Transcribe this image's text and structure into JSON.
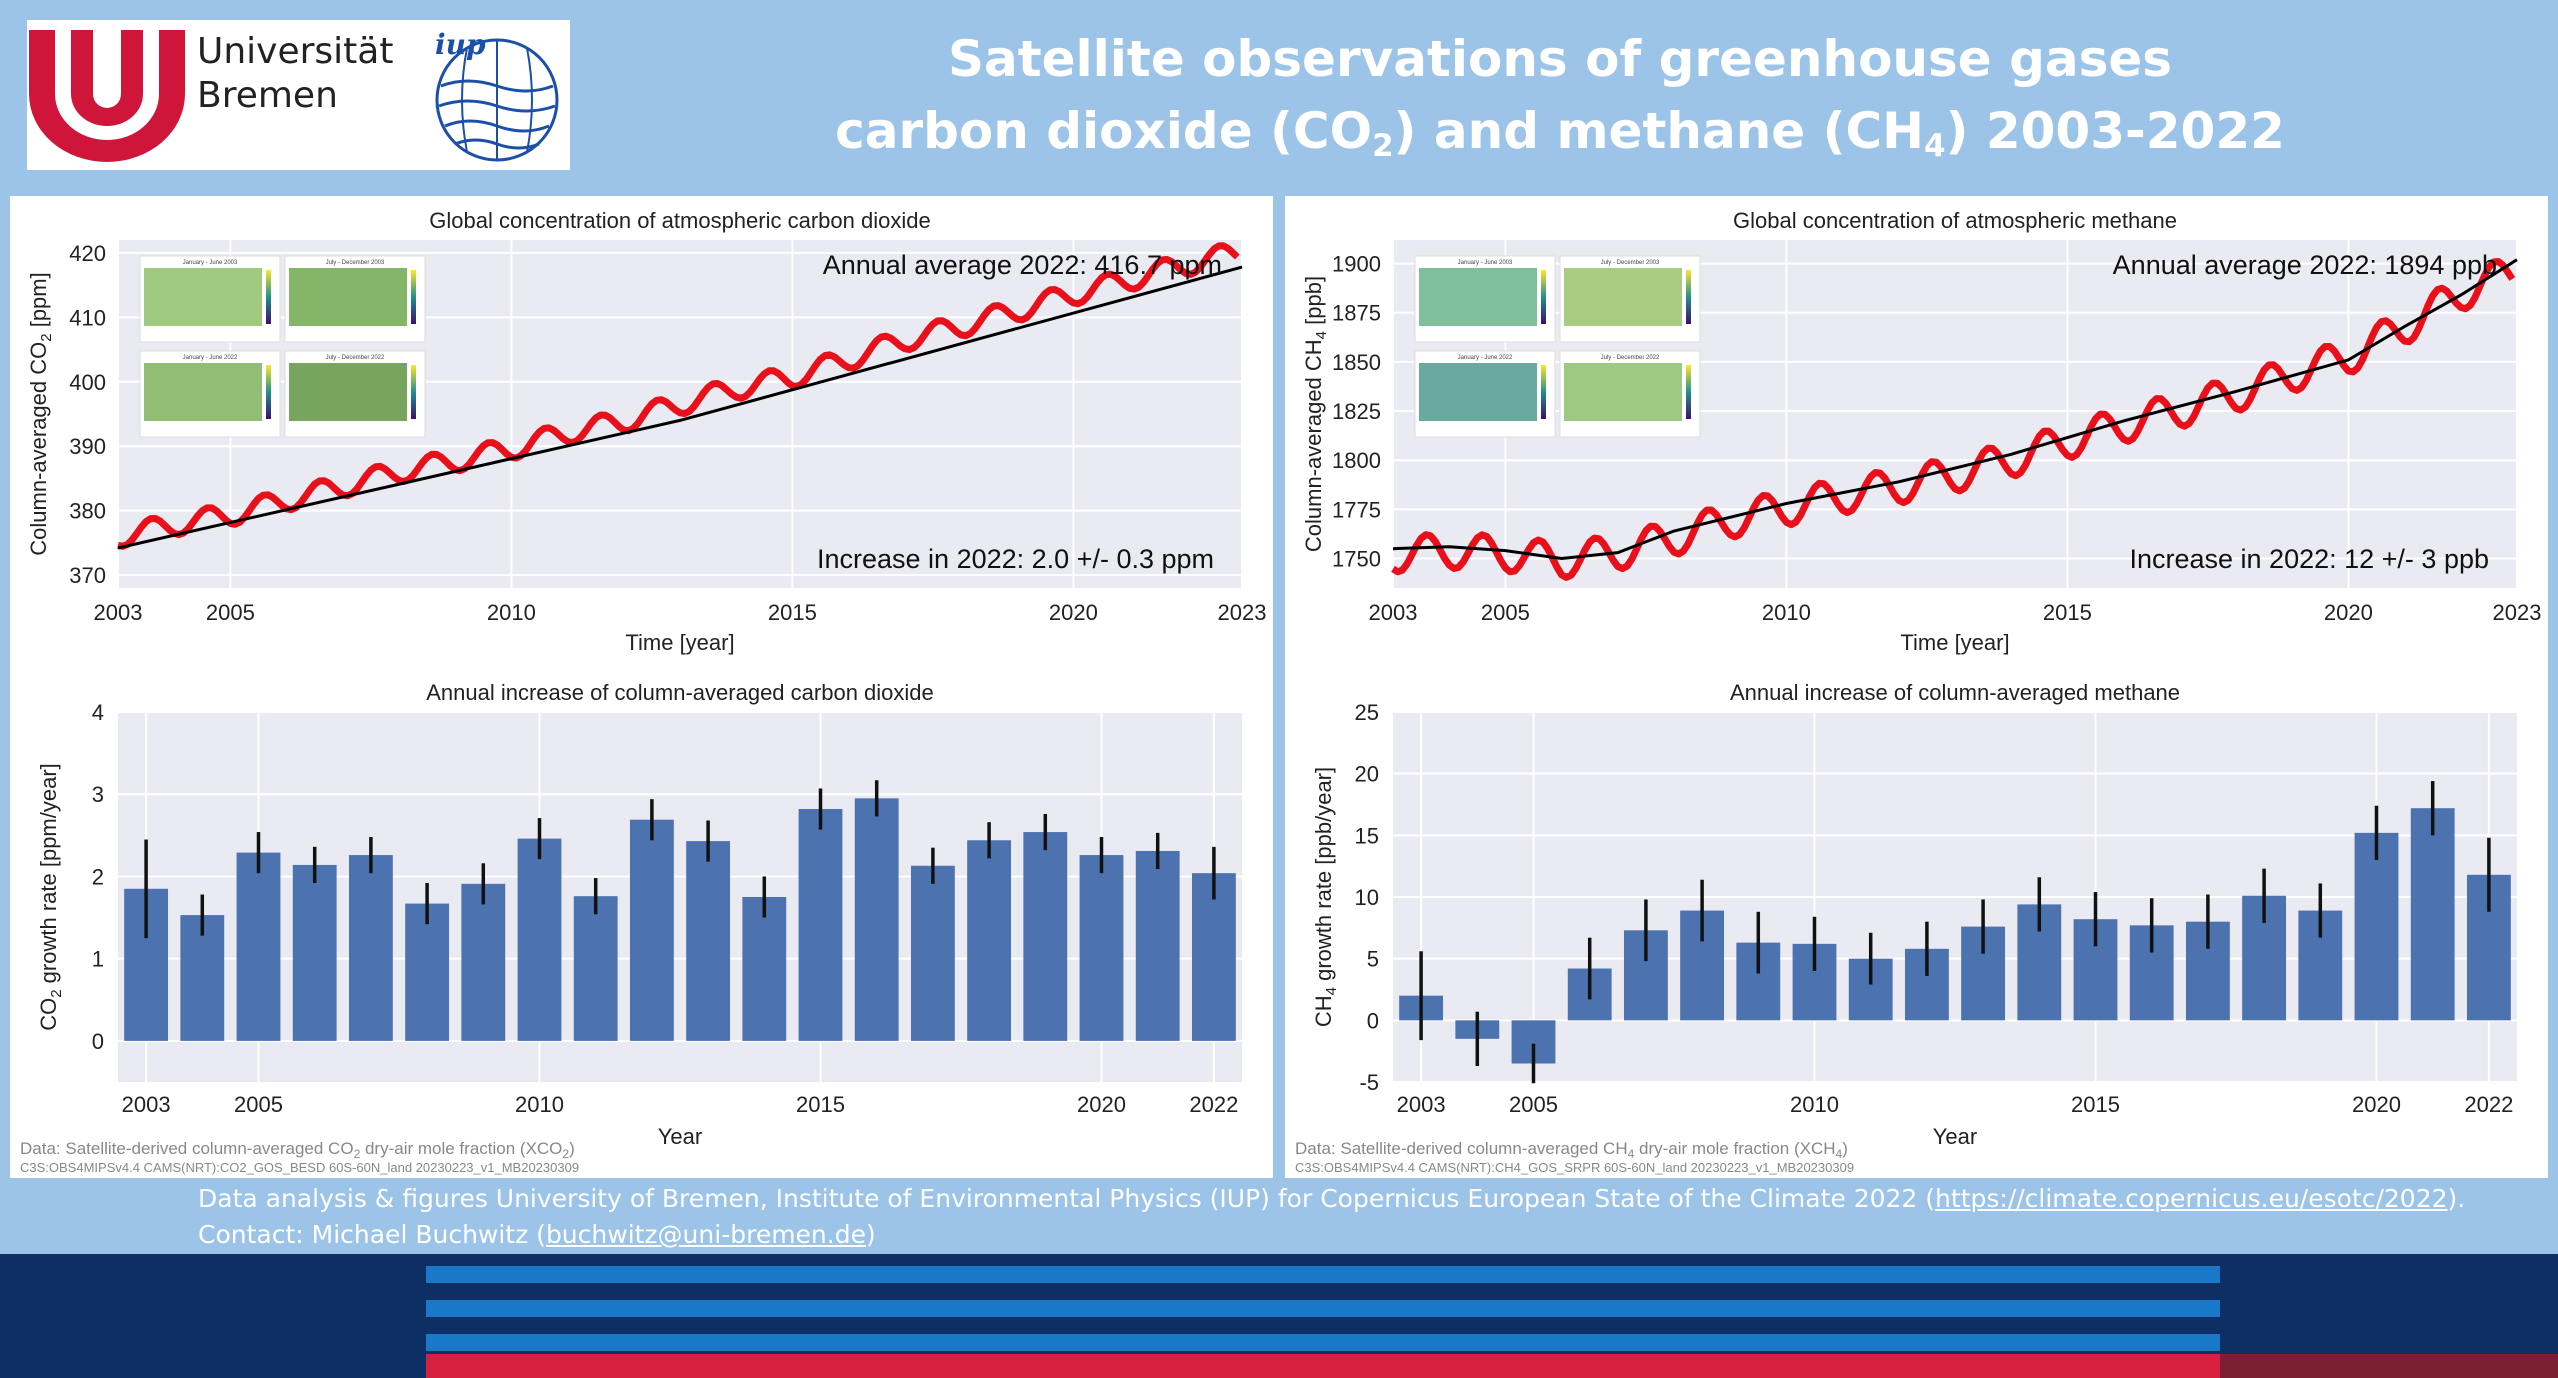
{
  "header": {
    "university_name": "Universität",
    "university_city": "Bremen",
    "institute_logo": "iup",
    "title_line1": "Satellite observations of greenhouse gases",
    "title_line2_a": "carbon dioxide (CO",
    "title_line2_sub1": "2",
    "title_line2_b": ") and methane (CH",
    "title_line2_sub2": "4",
    "title_line2_c": ") 2003-2022"
  },
  "colors": {
    "bar": "#4c72b0",
    "line_red": "#e8101a",
    "trend": "#000000",
    "plot_bg": "#eaeaf2",
    "page_bg": "#9cc3e8",
    "navy": "#0e2f63"
  },
  "panels": {
    "co2": {
      "source_prefix": "Data: Satellite-derived column-averaged CO",
      "source_sub": "2",
      "source_suffix": " dry-air mole fraction (XCO",
      "source_sub2": "2",
      "source_end": ")",
      "source_id": "C3S:OBS4MIPSv4.4 CAMS(NRT):CO2_GOS_BESD 60S-60N_land 20230223_v1_MB20230309",
      "map_titles": [
        "January - June 2003",
        "July - December 2003",
        "January - June 2022",
        "July - December 2022"
      ]
    },
    "ch4": {
      "source_prefix": "Data: Satellite-derived column-averaged CH",
      "source_sub": "4",
      "source_suffix": " dry-air mole fraction (XCH",
      "source_sub2": "4",
      "source_end": ")",
      "source_id": "C3S:OBS4MIPSv4.4 CAMS(NRT):CH4_GOS_SRPR 60S-60N_land 20230223_v1_MB20230309",
      "map_titles": [
        "January - June 2003",
        "July - December 2003",
        "January - June 2022",
        "July - December 2022"
      ]
    }
  },
  "chart_data": [
    {
      "type": "line",
      "title": "Global concentration of atmospheric carbon dioxide",
      "xlabel": "Time [year]",
      "ylabel": "Column-averaged CO2 [ppm]",
      "xlim": [
        2003,
        2023
      ],
      "ylim": [
        368,
        422
      ],
      "xticks": [
        2003,
        2005,
        2010,
        2015,
        2020,
        2023
      ],
      "yticks": [
        370,
        380,
        390,
        400,
        410,
        420
      ],
      "annotations": [
        "Annual average 2022: 416.7 ppm",
        "Increase in 2022: 2.0 +/- 0.3 ppm"
      ],
      "series": [
        {
          "style": "red-seasonal",
          "start": 376.0,
          "annual_growth": [
            1.85,
            1.53,
            2.29,
            2.14,
            2.26,
            1.67,
            1.91,
            2.46,
            1.76,
            2.69,
            2.43,
            1.75,
            2.82,
            2.95,
            2.13,
            2.44,
            2.54,
            2.26,
            2.31,
            2.04
          ],
          "seasonal_amplitude": 1.7
        },
        {
          "style": "trend",
          "points": [
            [
              2003,
              374.2
            ],
            [
              2013,
              394.0
            ],
            [
              2023,
              417.8
            ]
          ]
        }
      ]
    },
    {
      "type": "bar",
      "title": "Annual increase of column-averaged carbon dioxide",
      "xlabel": "Year",
      "ylabel": "CO2 growth rate [ppm/year]",
      "ylim": [
        -0.5,
        4
      ],
      "yticks": [
        0,
        1,
        2,
        3,
        4
      ],
      "xticks": [
        2003,
        2005,
        2010,
        2015,
        2020,
        2022
      ],
      "categories": [
        2003,
        2004,
        2005,
        2006,
        2007,
        2008,
        2009,
        2010,
        2011,
        2012,
        2013,
        2014,
        2015,
        2016,
        2017,
        2018,
        2019,
        2020,
        2021,
        2022
      ],
      "values": [
        1.85,
        1.53,
        2.29,
        2.14,
        2.26,
        1.67,
        1.91,
        2.46,
        1.76,
        2.69,
        2.43,
        1.75,
        2.82,
        2.95,
        2.13,
        2.44,
        2.54,
        2.26,
        2.31,
        2.04
      ],
      "errors": [
        0.6,
        0.25,
        0.25,
        0.22,
        0.22,
        0.25,
        0.25,
        0.25,
        0.22,
        0.25,
        0.25,
        0.25,
        0.25,
        0.22,
        0.22,
        0.22,
        0.22,
        0.22,
        0.22,
        0.32
      ]
    },
    {
      "type": "line",
      "title": "Global concentration of atmospheric methane",
      "xlabel": "Time [year]",
      "ylabel": "Column-averaged CH4 [ppb]",
      "xlim": [
        2003,
        2023
      ],
      "ylim": [
        1735,
        1912
      ],
      "xticks": [
        2003,
        2005,
        2010,
        2015,
        2020,
        2023
      ],
      "yticks": [
        1750,
        1775,
        1800,
        1825,
        1850,
        1875,
        1900
      ],
      "annotations": [
        "Annual average 2022: 1894 ppb",
        "Increase in 2022: 12 +/- 3 ppb"
      ],
      "series": [
        {
          "style": "red-seasonal",
          "start": 1752,
          "annual_growth": [
            2,
            -1.5,
            -3.5,
            4.2,
            7.3,
            8.9,
            6.3,
            6.2,
            5.0,
            5.8,
            7.6,
            9.4,
            8.2,
            7.7,
            8.0,
            10.1,
            8.9,
            15.2,
            17.2,
            11.8
          ],
          "seasonal_amplitude": 9
        },
        {
          "style": "trend",
          "points": [
            [
              2003,
              1755
            ],
            [
              2004,
              1756
            ],
            [
              2005,
              1754
            ],
            [
              2006,
              1750
            ],
            [
              2007,
              1753
            ],
            [
              2008,
              1764
            ],
            [
              2010,
              1778
            ],
            [
              2012,
              1789
            ],
            [
              2014,
              1803
            ],
            [
              2016,
              1820
            ],
            [
              2018,
              1835
            ],
            [
              2020,
              1851
            ],
            [
              2021,
              1868
            ],
            [
              2022,
              1884
            ],
            [
              2023,
              1902
            ]
          ]
        }
      ]
    },
    {
      "type": "bar",
      "title": "Annual increase of column-averaged methane",
      "xlabel": "Year",
      "ylabel": "CH4 growth rate [ppb/year]",
      "ylim": [
        -5,
        25
      ],
      "yticks": [
        -5,
        0,
        5,
        10,
        15,
        20,
        25
      ],
      "xticks": [
        2003,
        2005,
        2010,
        2015,
        2020,
        2022
      ],
      "categories": [
        2003,
        2004,
        2005,
        2006,
        2007,
        2008,
        2009,
        2010,
        2011,
        2012,
        2013,
        2014,
        2015,
        2016,
        2017,
        2018,
        2019,
        2020,
        2021,
        2022
      ],
      "values": [
        2.0,
        -1.5,
        -3.5,
        4.2,
        7.3,
        8.9,
        6.3,
        6.2,
        5.0,
        5.8,
        7.6,
        9.4,
        8.2,
        7.7,
        8.0,
        10.1,
        8.9,
        15.2,
        17.2,
        11.8
      ],
      "errors": [
        3.6,
        2.2,
        1.6,
        2.5,
        2.5,
        2.5,
        2.5,
        2.2,
        2.1,
        2.2,
        2.2,
        2.2,
        2.2,
        2.2,
        2.2,
        2.2,
        2.2,
        2.2,
        2.2,
        3.0
      ]
    }
  ],
  "footer": {
    "line1_prefix": "Data analysis & figures University of Bremen, Institute of Environmental Physics (IUP) for Copernicus European State of the Climate 2022 (",
    "line1_link": "https://climate.copernicus.eu/esotc/2022",
    "line1_suffix": ").",
    "line2_prefix": "Contact: Michael Buchwitz (",
    "line2_link": "buchwitz@uni-bremen.de",
    "line2_suffix": ")"
  }
}
